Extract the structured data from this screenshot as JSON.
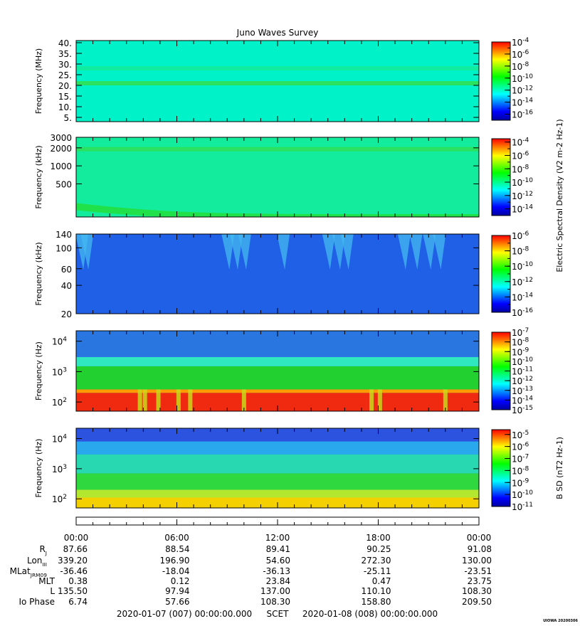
{
  "title": "Juno Waves Survey",
  "chart_data": [
    {
      "type": "heatmap",
      "panel": 1,
      "ylabel": "Frequency (MHz)",
      "yscale": "linear",
      "ylim": [
        3,
        41
      ],
      "y_ticks": [
        5,
        10,
        15,
        20,
        25,
        30,
        35,
        40
      ],
      "y_tick_labels": [
        "5.",
        "10.",
        "15.",
        "20.",
        "25.",
        "30.",
        "35.",
        "40."
      ],
      "colorbar": {
        "ylabel": "",
        "log_range": [
          -17,
          -4
        ],
        "tick_exponents": [
          -4,
          -6,
          -8,
          -10,
          -12,
          -14,
          -16
        ],
        "tick_labels": [
          "10",
          "10",
          "10",
          "10",
          "10",
          "10",
          "10"
        ],
        "tick_sups": [
          "-4",
          "-6",
          "-8",
          "-10",
          "-12",
          "-14",
          "-16"
        ]
      },
      "background_color": "#00f2c8",
      "features": [
        {
          "kind": "band",
          "y_value": 21,
          "color": "#2fe052"
        },
        {
          "kind": "band",
          "y_value": 28,
          "color": "#14eb9c"
        }
      ]
    },
    {
      "type": "heatmap",
      "panel": 2,
      "ylabel": "Frequency (kHz)",
      "yscale": "log",
      "ylim": [
        140,
        3000
      ],
      "y_ticks": [
        500,
        1000,
        2000,
        3000
      ],
      "y_tick_labels": [
        "500",
        "1000",
        "2000",
        "3000"
      ],
      "colorbar": {
        "ylabel": "",
        "log_range": [
          -15,
          -3.5
        ],
        "tick_exponents": [
          -4,
          -6,
          -8,
          -10,
          -12,
          -14
        ],
        "tick_labels": [
          "10",
          "10",
          "10",
          "10",
          "10",
          "10"
        ],
        "tick_sups": [
          "-4",
          "-6",
          "-8",
          "-10",
          "-12",
          "-14"
        ]
      },
      "background_color": "#12ec9c",
      "features": [
        {
          "kind": "band",
          "y_value": 1900,
          "color": "#2ee05c"
        },
        {
          "kind": "decay_band",
          "y_start": 215,
          "y_end": 148,
          "color": "#22e040"
        }
      ]
    },
    {
      "type": "heatmap",
      "panel": 3,
      "ylabel": "Frequency (kHz)",
      "yscale": "log",
      "ylim": [
        20,
        140
      ],
      "y_ticks": [
        20,
        40,
        60,
        100,
        140
      ],
      "y_tick_labels": [
        "20",
        "40",
        "60",
        "100",
        "140"
      ],
      "colorbar": {
        "ylabel": "Electric Spectral Density (V2 m-2 Hz-1)",
        "log_range": [
          -16,
          -6
        ],
        "tick_exponents": [
          -6,
          -8,
          -10,
          -12,
          -14,
          -16
        ],
        "tick_labels": [
          "10",
          "10",
          "10",
          "10",
          "10",
          "10"
        ],
        "tick_sups": [
          "-6",
          "-8",
          "-10",
          "-12",
          "-14",
          "-16"
        ]
      },
      "background_color": "#2060e6",
      "features": [
        {
          "kind": "bursts",
          "color": "#44b8f0",
          "hours": [
            0.3,
            0.6,
            9.0,
            9.5,
            10.0,
            12.3,
            15.0,
            15.6,
            16.1,
            19.5,
            20.2,
            21.0,
            21.6
          ]
        }
      ]
    },
    {
      "type": "heatmap",
      "panel": 4,
      "ylabel": "Frequency (Hz)",
      "yscale": "log",
      "ylim": [
        50,
        22000
      ],
      "y_ticks": [
        100,
        1000,
        10000
      ],
      "y_tick_labels": [
        "10",
        "10",
        "10"
      ],
      "y_tick_sups": [
        "2",
        "3",
        "4"
      ],
      "colorbar": {
        "ylabel": "",
        "log_range": [
          -15,
          -7
        ],
        "tick_exponents": [
          -7,
          -8,
          -9,
          -10,
          -11,
          -12,
          -13,
          -14,
          -15
        ],
        "tick_labels": [
          "10",
          "10",
          "10",
          "10",
          "10",
          "10",
          "10",
          "10",
          "10"
        ],
        "tick_sups": [
          "-7",
          "-8",
          "-9",
          "-10",
          "-11",
          "-12",
          "-13",
          "-14",
          "-15"
        ]
      },
      "background_color": "#2a76e0",
      "features": [
        {
          "kind": "layer",
          "y_from": 50,
          "y_to": 200,
          "color": "#f02a10"
        },
        {
          "kind": "layer",
          "y_from": 200,
          "y_to": 260,
          "color": "#ff9a00"
        },
        {
          "kind": "layer",
          "y_from": 260,
          "y_to": 1500,
          "color": "#22d030"
        },
        {
          "kind": "layer",
          "y_from": 1500,
          "y_to": 3000,
          "color": "#30e8c0"
        },
        {
          "kind": "gaps",
          "color": "#c9d81a",
          "hours": [
            3.8,
            4.1,
            4.9,
            6.1,
            6.8,
            10.0,
            17.6,
            18.1,
            22.0
          ]
        }
      ]
    },
    {
      "type": "heatmap",
      "panel": 5,
      "ylabel": "Frequency (Hz)",
      "yscale": "log",
      "ylim": [
        50,
        22000
      ],
      "y_ticks": [
        100,
        1000,
        10000
      ],
      "y_tick_labels": [
        "10",
        "10",
        "10"
      ],
      "y_tick_sups": [
        "2",
        "3",
        "4"
      ],
      "colorbar": {
        "ylabel": "B SD (nT2 Hz-1)",
        "log_range": [
          -11,
          -4.6
        ],
        "tick_exponents": [
          -5,
          -6,
          -7,
          -8,
          -9,
          -10,
          -11
        ],
        "tick_labels": [
          "10",
          "10",
          "10",
          "10",
          "10",
          "10",
          "10"
        ],
        "tick_sups": [
          "-5",
          "-6",
          "-7",
          "-8",
          "-9",
          "-10",
          "-11"
        ]
      },
      "background_color": "#2c52e0",
      "features": [
        {
          "kind": "layer",
          "y_from": 50,
          "y_to": 110,
          "color": "#f4d000"
        },
        {
          "kind": "layer",
          "y_from": 110,
          "y_to": 200,
          "color": "#b4e830"
        },
        {
          "kind": "layer",
          "y_from": 200,
          "y_to": 700,
          "color": "#30d840"
        },
        {
          "kind": "layer",
          "y_from": 700,
          "y_to": 3000,
          "color": "#28d8b0"
        },
        {
          "kind": "layer",
          "y_from": 3000,
          "y_to": 8000,
          "color": "#2aa8ee"
        }
      ]
    }
  ],
  "time_axis": {
    "x_ticks_hours": [
      0,
      6,
      12,
      18,
      24
    ],
    "x_tick_labels": [
      "00:00",
      "06:00",
      "12:00",
      "18:00",
      "00:00"
    ],
    "minor_tick_hours": 1
  },
  "ephemeris": [
    {
      "label": "R",
      "label_sub": "J",
      "values": [
        "87.66",
        "88.54",
        "89.41",
        "90.25",
        "91.08"
      ]
    },
    {
      "label": "Lon",
      "label_sub": "III",
      "values": [
        "339.20",
        "196.90",
        "54.60",
        "272.30",
        "130.00"
      ]
    },
    {
      "label": "MLat",
      "label_sub": "JRM09",
      "values": [
        "-36.46",
        "-18.04",
        "-36.13",
        "-25.11",
        "-23.51"
      ]
    },
    {
      "label": "MLT",
      "label_sub": "",
      "values": [
        "0.38",
        "0.12",
        "23.84",
        "0.47",
        "23.75"
      ]
    },
    {
      "label": "L",
      "label_sub": "",
      "values": [
        "135.50",
        "97.94",
        "137.00",
        "110.10",
        "108.30"
      ]
    },
    {
      "label": "Io Phase",
      "label_sub": "",
      "values": [
        "6.74",
        "57.66",
        "108.30",
        "158.80",
        "209.50"
      ]
    }
  ],
  "footer": {
    "start": "2020-01-07 (007) 00:00:00.000",
    "scet": "SCET",
    "end": "2020-01-08 (008) 00:00:00.000",
    "credit": "UIOWA 20200306"
  },
  "colorbar_stops": [
    "#0000a0",
    "#0000ff",
    "#0080ff",
    "#00ffff",
    "#00ff80",
    "#00ff00",
    "#80ff00",
    "#ffff00",
    "#ff8000",
    "#ff0000"
  ]
}
